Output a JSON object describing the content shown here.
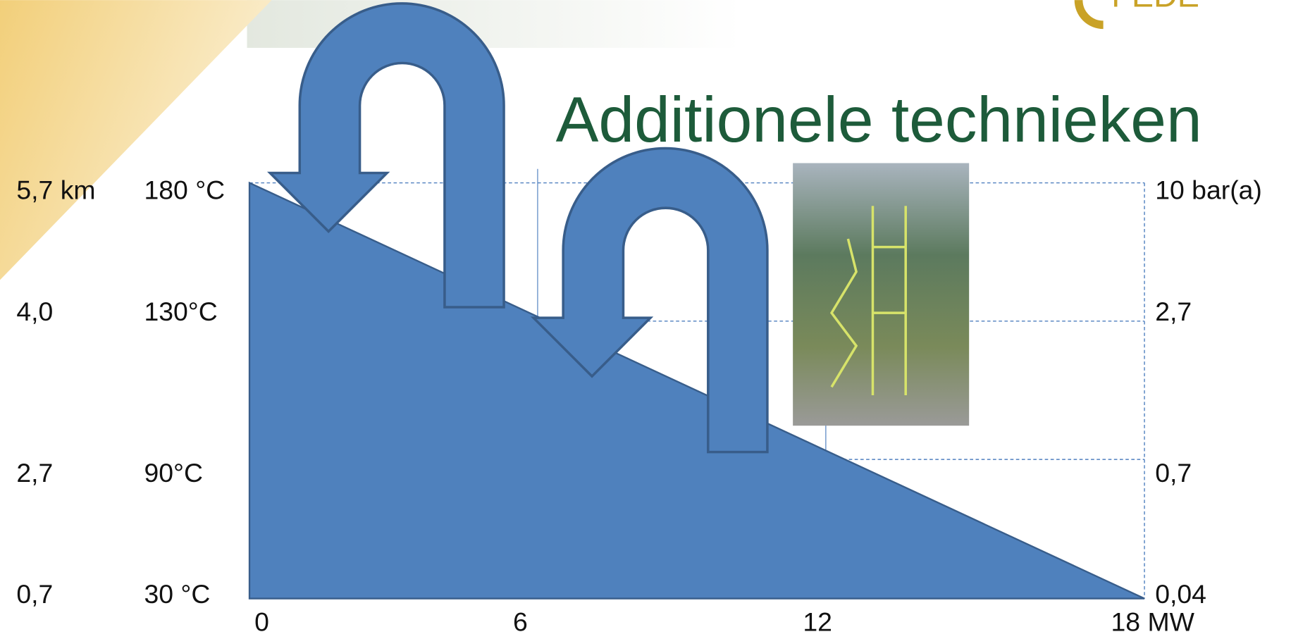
{
  "title": "Additionele technieken",
  "rows": [
    {
      "depth": "5,7 km",
      "temperature": "180 °C",
      "pressure": "10 bar(a)"
    },
    {
      "depth": "4,0",
      "temperature": "130°C",
      "pressure": "2,7"
    },
    {
      "depth": "2,7",
      "temperature": "90°C",
      "pressure": "0,7"
    },
    {
      "depth": "0,7",
      "temperature": "30 °C",
      "pressure": "0,04"
    }
  ],
  "x_labels": [
    "0",
    "6",
    "12",
    "18 MW"
  ]
}
